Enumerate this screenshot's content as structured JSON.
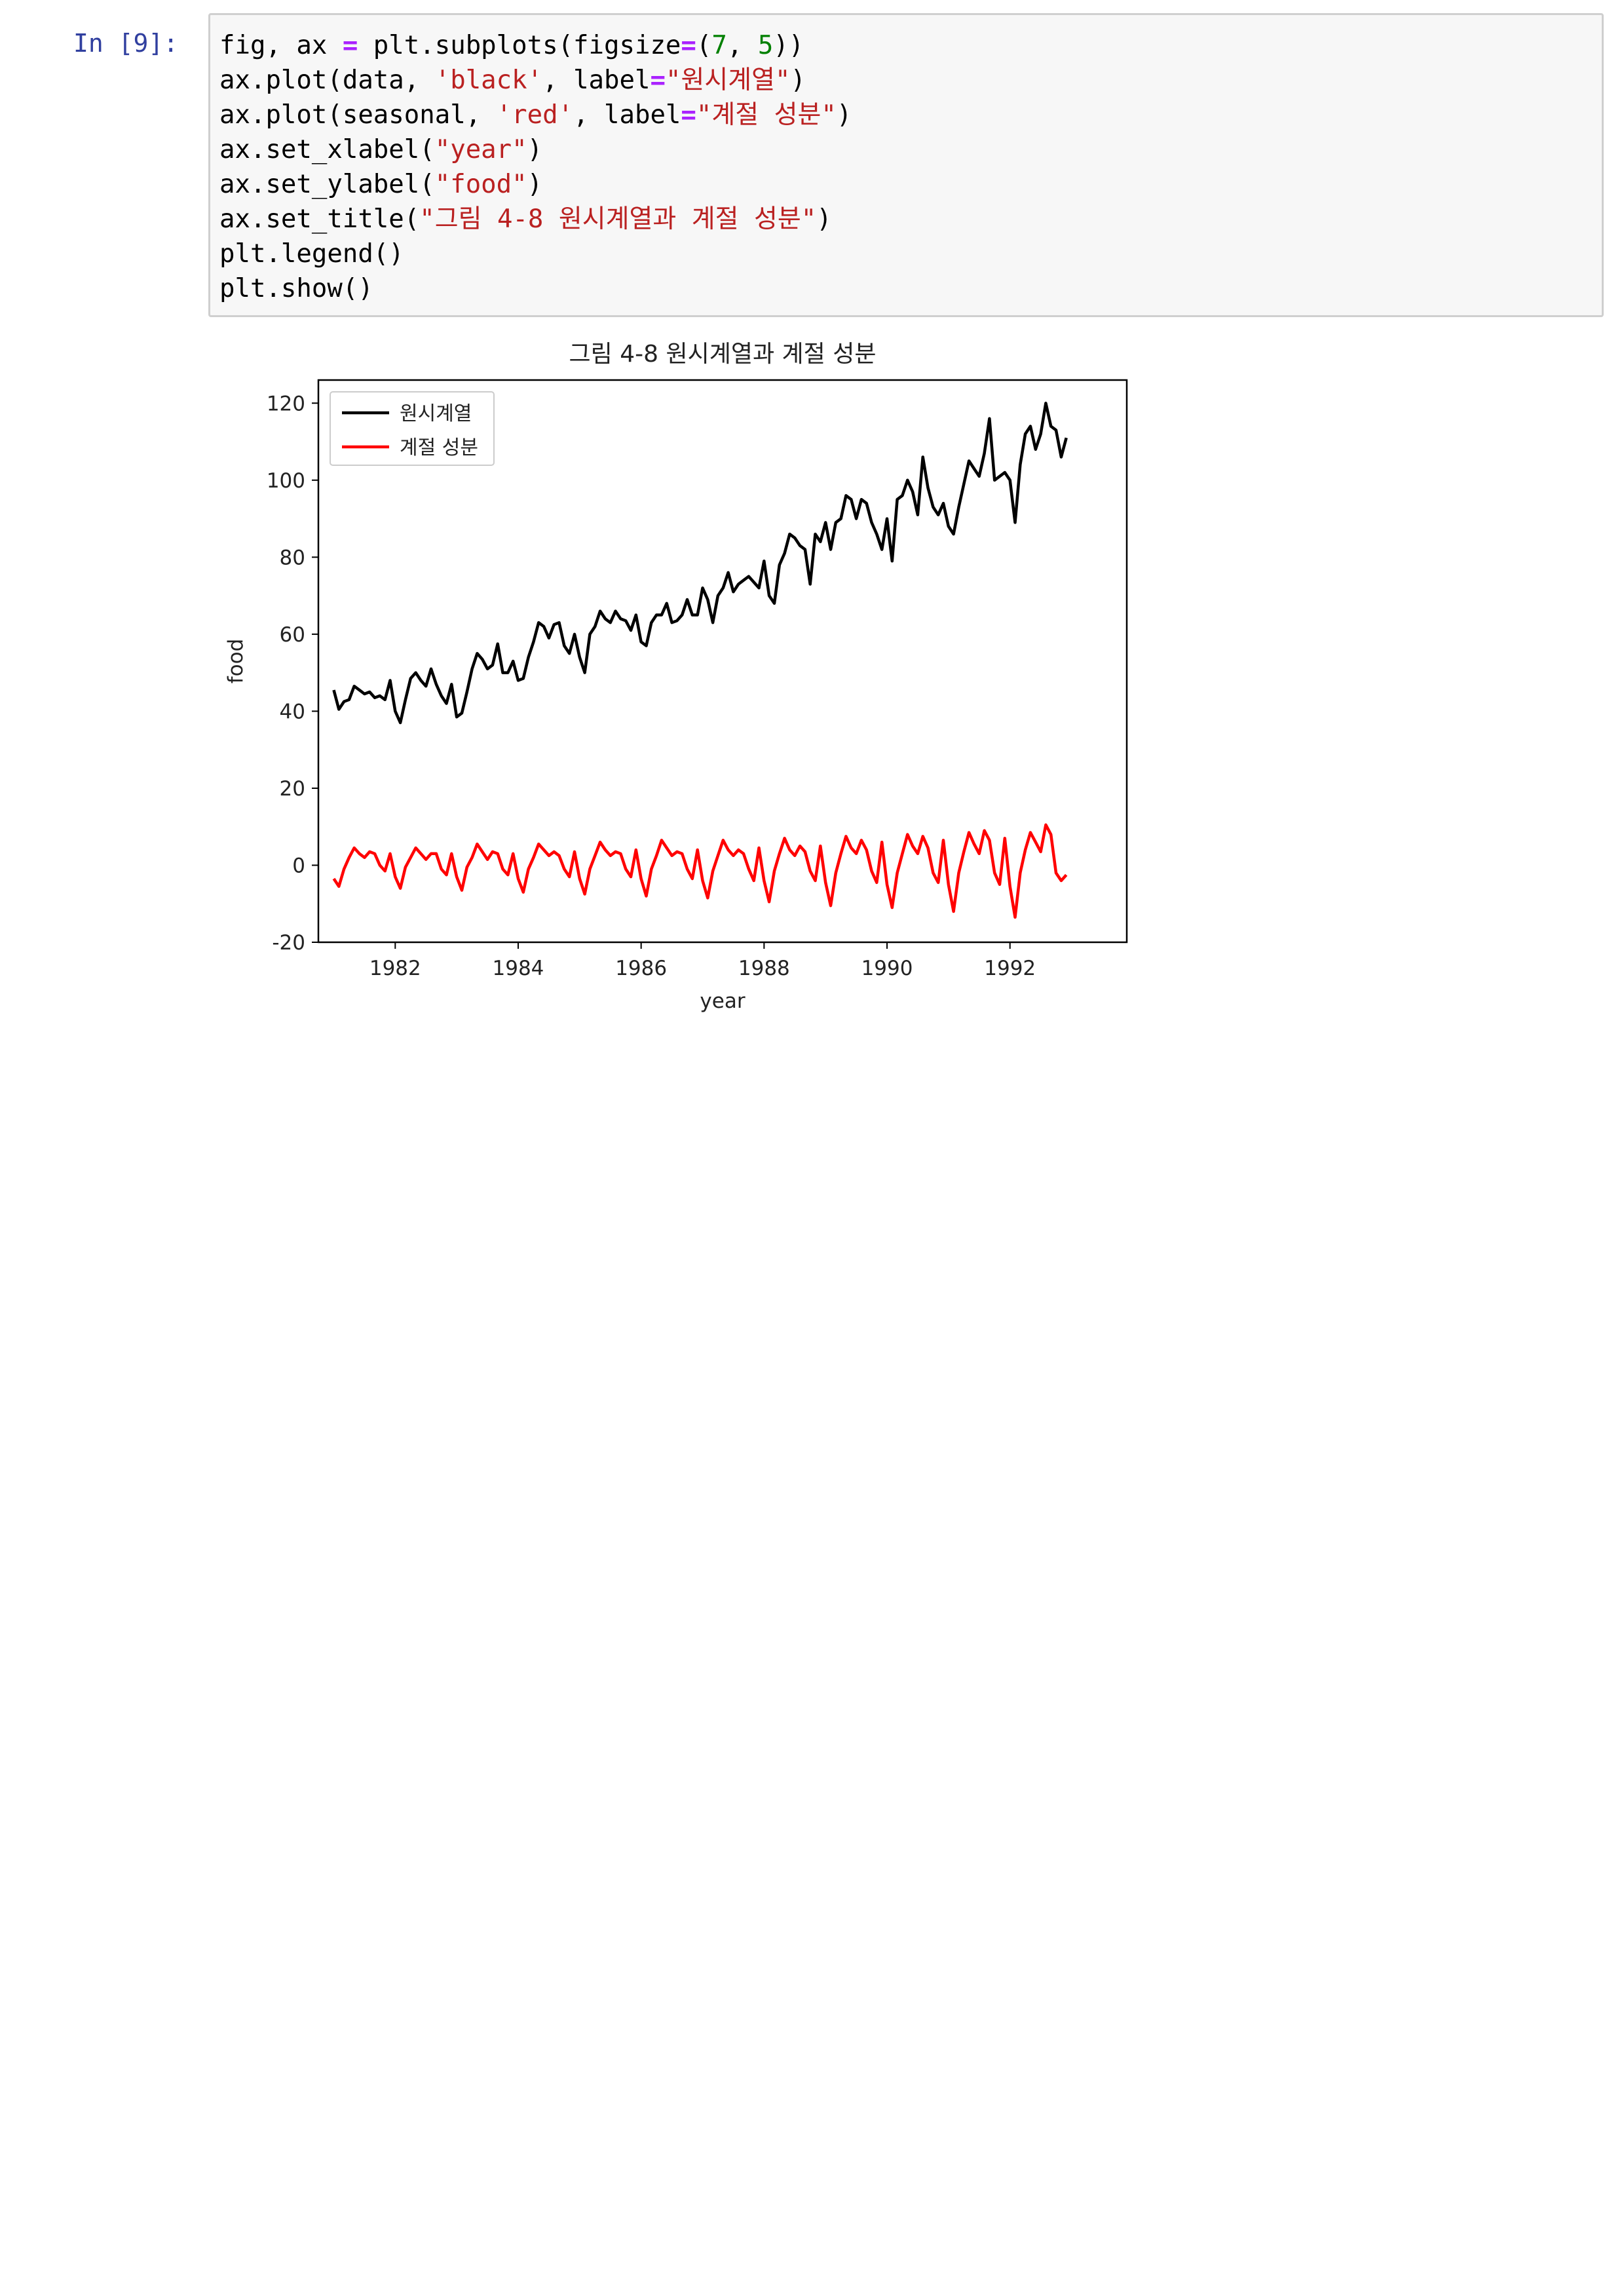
{
  "cell": {
    "prompt": "In [9]:",
    "code_lines": [
      [
        {
          "t": "fig, ax ",
          "c": ""
        },
        {
          "t": "=",
          "c": "k"
        },
        {
          "t": " plt.subplots(figsize",
          "c": ""
        },
        {
          "t": "=",
          "c": "k"
        },
        {
          "t": "(",
          "c": ""
        },
        {
          "t": "7",
          "c": "n"
        },
        {
          "t": ", ",
          "c": ""
        },
        {
          "t": "5",
          "c": "n"
        },
        {
          "t": "))",
          "c": ""
        }
      ],
      [
        {
          "t": "ax.plot(data, ",
          "c": ""
        },
        {
          "t": "'black'",
          "c": "s"
        },
        {
          "t": ", label",
          "c": ""
        },
        {
          "t": "=",
          "c": "k"
        },
        {
          "t": "\"원시계열\"",
          "c": "s"
        },
        {
          "t": ")",
          "c": ""
        }
      ],
      [
        {
          "t": "ax.plot(seasonal, ",
          "c": ""
        },
        {
          "t": "'red'",
          "c": "s"
        },
        {
          "t": ", label",
          "c": ""
        },
        {
          "t": "=",
          "c": "k"
        },
        {
          "t": "\"계절 성분\"",
          "c": "s"
        },
        {
          "t": ")",
          "c": ""
        }
      ],
      [
        {
          "t": "ax.set_xlabel(",
          "c": ""
        },
        {
          "t": "\"year\"",
          "c": "s"
        },
        {
          "t": ")",
          "c": ""
        }
      ],
      [
        {
          "t": "ax.set_ylabel(",
          "c": ""
        },
        {
          "t": "\"food\"",
          "c": "s"
        },
        {
          "t": ")",
          "c": ""
        }
      ],
      [
        {
          "t": "ax.set_title(",
          "c": ""
        },
        {
          "t": "\"그림 4-8 원시계열과 계절 성분\"",
          "c": "s"
        },
        {
          "t": ")",
          "c": ""
        }
      ],
      [
        {
          "t": "plt.legend()",
          "c": ""
        }
      ],
      [
        {
          "t": "plt.show()",
          "c": ""
        }
      ]
    ]
  },
  "chart_data": {
    "type": "line",
    "title": "그림 4-8 원시계열과 계절 성분",
    "xlabel": "year",
    "ylabel": "food",
    "xlim": [
      1980.75,
      1993.9
    ],
    "ylim": [
      -20,
      126
    ],
    "xticks": [
      1982,
      1984,
      1986,
      1988,
      1990,
      1992
    ],
    "yticks": [
      -20,
      0,
      20,
      40,
      60,
      80,
      100,
      120
    ],
    "grid": false,
    "legend": "top-left",
    "x_start": 1981.0,
    "x_step": 0.08333,
    "series": [
      {
        "name": "원시계열",
        "color": "#000000",
        "values": [
          45.5,
          40.5,
          42.5,
          43,
          46.5,
          45.5,
          44.5,
          45,
          43.5,
          44,
          43,
          48,
          40,
          37,
          43,
          48.5,
          50,
          48,
          46.5,
          51,
          47,
          44,
          42,
          47,
          38.5,
          39.5,
          45,
          51,
          55,
          53.5,
          51,
          52,
          57.5,
          50,
          50,
          53,
          48,
          48.5,
          54,
          58,
          63,
          62,
          59,
          62.5,
          63,
          57,
          55,
          60,
          54,
          50,
          60,
          62,
          66,
          64,
          63,
          66,
          64,
          63.5,
          61,
          65,
          58,
          57,
          63,
          65,
          65,
          68,
          63,
          63.5,
          65,
          69,
          65,
          65,
          72,
          69,
          63,
          70,
          72,
          76,
          71,
          73,
          74,
          75,
          73.5,
          72,
          79,
          70,
          68,
          78,
          81,
          86,
          85,
          83,
          82,
          73,
          86,
          84,
          89,
          82,
          89,
          90,
          96,
          95,
          90,
          95,
          94,
          89,
          86,
          82,
          90,
          79,
          95,
          96,
          100,
          97,
          91,
          106,
          98,
          93,
          91,
          94,
          88,
          86,
          93,
          99,
          105,
          103,
          101,
          107,
          116,
          100,
          101,
          102,
          100,
          89,
          104,
          112,
          114,
          108,
          112,
          120,
          114,
          113,
          106,
          111
        ]
      },
      {
        "name": "계절 성분",
        "color": "#ff0000",
        "values": [
          -3.5,
          -5.5,
          -1,
          2,
          4.5,
          3,
          2,
          3.5,
          3,
          0,
          -1.5,
          3,
          -3,
          -6,
          -0.5,
          2,
          4.5,
          3,
          1.5,
          3,
          3,
          -1,
          -2.5,
          3,
          -3,
          -6.5,
          -0.5,
          2,
          5.5,
          3.5,
          1.5,
          3.5,
          3,
          -1,
          -2.5,
          3,
          -3.5,
          -7,
          -1,
          2,
          5.5,
          4,
          2.5,
          3.5,
          2.5,
          -1,
          -3,
          3.5,
          -3.5,
          -7.5,
          -1,
          2.5,
          6,
          4,
          2.5,
          3.5,
          3,
          -1,
          -3,
          4,
          -3.5,
          -8,
          -1,
          2.5,
          6.5,
          4.5,
          2.5,
          3.5,
          3,
          -1,
          -3.5,
          4,
          -4,
          -8.5,
          -1.5,
          2.5,
          6.5,
          4,
          2.5,
          4,
          3,
          -1,
          -4,
          4.5,
          -4,
          -9.5,
          -1.5,
          3,
          7,
          4,
          2.5,
          5,
          3.5,
          -1.5,
          -4,
          5,
          -4.5,
          -10.5,
          -2,
          3,
          7.5,
          4.5,
          3,
          6.5,
          4,
          -1.5,
          -4.5,
          6,
          -5,
          -11,
          -2,
          3,
          8,
          5,
          3,
          7.5,
          4.5,
          -2,
          -4.5,
          6.5,
          -5,
          -12,
          -2,
          3.5,
          8.5,
          5.5,
          3,
          9,
          6.5,
          -2,
          -5,
          7,
          -5.5,
          -13.5,
          -2,
          4,
          8.5,
          6,
          3.5,
          10.5,
          8,
          -2,
          -4,
          -2.5
        ]
      }
    ]
  }
}
